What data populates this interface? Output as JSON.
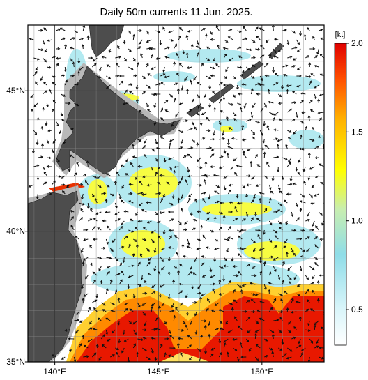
{
  "title": "Daily 50m currents 11 Jun. 2025.",
  "map": {
    "xlim": [
      138.7,
      153.0
    ],
    "ylim": [
      35,
      47.2
    ],
    "xticks": [
      {
        "value": 140,
        "label": "140°E"
      },
      {
        "value": 145,
        "label": "145°E"
      },
      {
        "value": 150,
        "label": "150°E"
      }
    ],
    "yticks": [
      {
        "value": 35,
        "label": "35°N"
      },
      {
        "value": 40,
        "label": "40°N"
      },
      {
        "value": 45,
        "label": "45°N"
      }
    ]
  },
  "colorbar": {
    "unit": "[kt]",
    "range": [
      0.3,
      2.0
    ],
    "ticks": [
      0.5,
      {
        "value": 1.0,
        "label": "1.0"
      },
      1.5,
      {
        "value": 2.0,
        "label": "2.0"
      }
    ]
  }
}
